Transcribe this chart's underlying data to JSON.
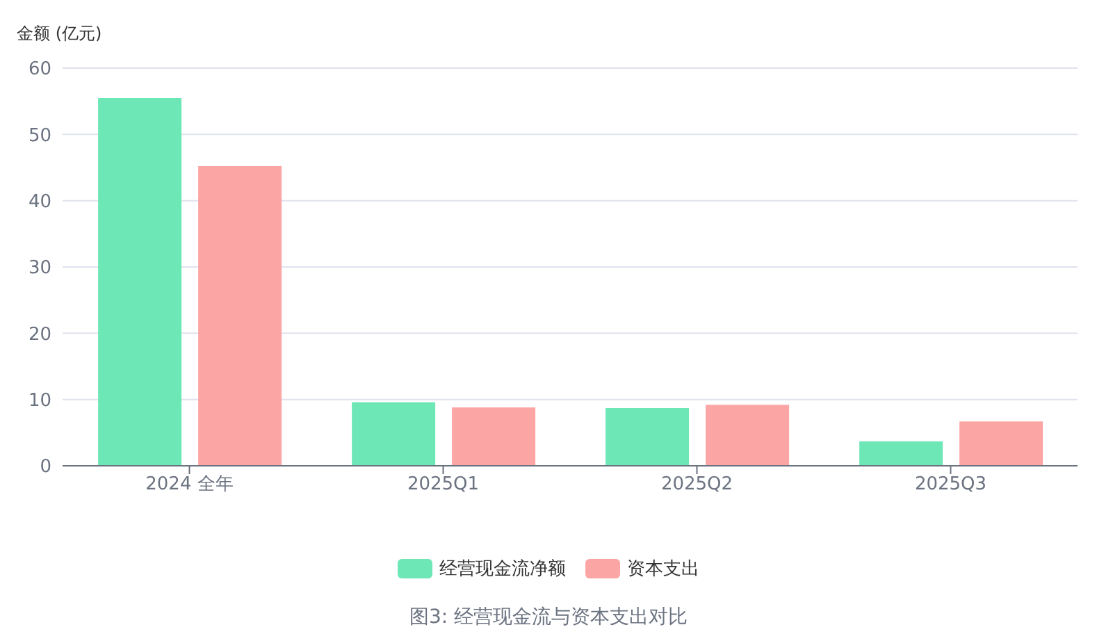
{
  "chart_data": {
    "type": "bar",
    "ylabel": "金额 (亿元)",
    "annotations": [
      "图3: 经营现金流与资本支出对比"
    ],
    "categories": [
      "2024 全年",
      "2025Q1",
      "2025Q2",
      "2025Q3"
    ],
    "series": [
      {
        "name": "经营现金流净额",
        "color": "#6ee7b7",
        "values": [
          55.5,
          9.6,
          8.7,
          3.7
        ]
      },
      {
        "name": "资本支出",
        "color": "#fca5a5",
        "values": [
          45.2,
          8.8,
          9.2,
          6.7
        ]
      }
    ],
    "ylim": [
      0,
      60
    ],
    "yticks": [
      0,
      10,
      20,
      30,
      40,
      50,
      60
    ],
    "grid": "y",
    "legend": "bottom"
  }
}
